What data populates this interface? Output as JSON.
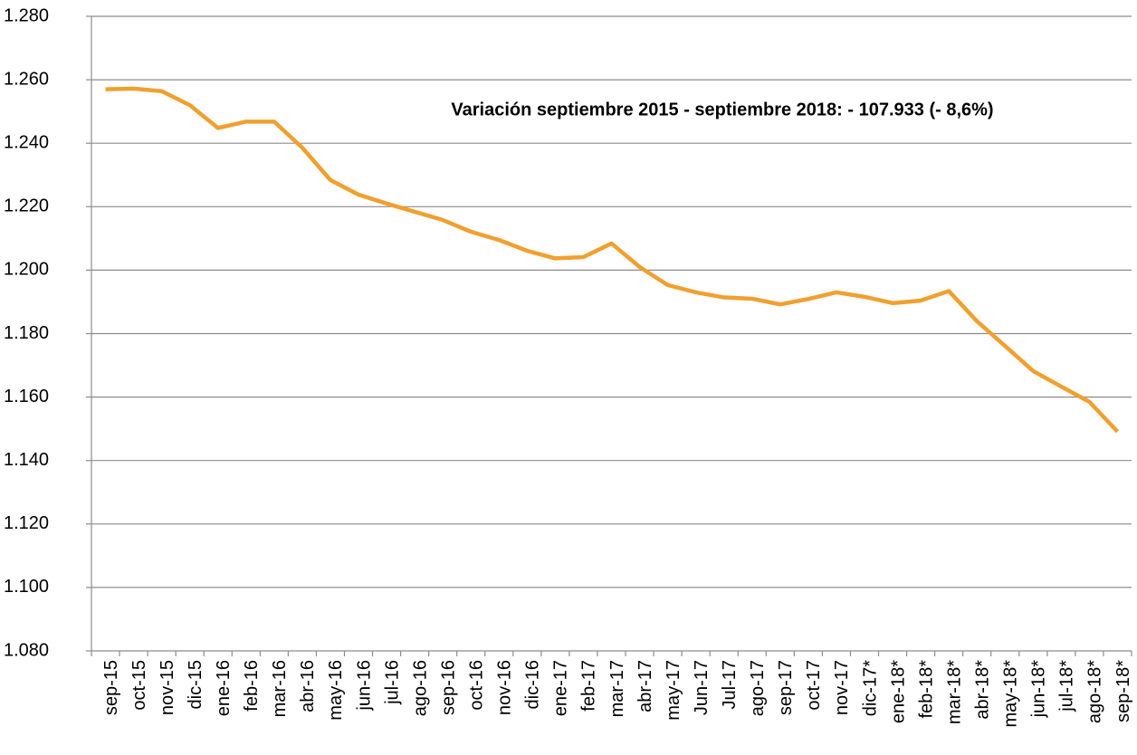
{
  "chart_data": {
    "type": "line",
    "annotation": "Variación septiembre 2015 - septiembre 2018: - 107.933 (- 8,6%)",
    "categories": [
      "sep-15",
      "oct-15",
      "nov-15",
      "dic-15",
      "ene-16",
      "feb-16",
      "mar-16",
      "abr-16",
      "may-16",
      "jun-16",
      "jul-16",
      "ago-16",
      "sep-16",
      "oct-16",
      "nov-16",
      "dic-16",
      "ene-17",
      "feb-17",
      "mar-17",
      "abr-17",
      "may-17",
      "Jun-17",
      "Jul-17",
      "ago-17",
      "sep-17",
      "oct-17",
      "nov-17",
      "dic-17*",
      "ene-18*",
      "feb-18*",
      "mar-18*",
      "abr-18*",
      "may-18*",
      "jun-18*",
      "jul-18*",
      "ago-18*",
      "sep-18*"
    ],
    "values": [
      1257,
      1257.2,
      1256.4,
      1252,
      1244.8,
      1246.8,
      1246.8,
      1238.6,
      1228.4,
      1223.8,
      1221,
      1218.4,
      1215.8,
      1212.1,
      1209.5,
      1206.1,
      1203.7,
      1204.1,
      1208.4,
      1201,
      1195.3,
      1193,
      1191.4,
      1191,
      1189.2,
      1190.9,
      1193,
      1191.6,
      1189.6,
      1190.4,
      1193.4,
      1183.9,
      1176.1,
      1168.2,
      1163.3,
      1158.5,
      1149.1
    ],
    "color": "#f0a030",
    "ylim": [
      1080,
      1280
    ],
    "yticks": [
      {
        "value": 1080,
        "label": "1.080"
      },
      {
        "value": 1100,
        "label": "1.100"
      },
      {
        "value": 1120,
        "label": "1.120"
      },
      {
        "value": 1140,
        "label": "1.140"
      },
      {
        "value": 1160,
        "label": "1.160"
      },
      {
        "value": 1180,
        "label": "1.180"
      },
      {
        "value": 1200,
        "label": "1.200"
      },
      {
        "value": 1220,
        "label": "1.220"
      },
      {
        "value": 1240,
        "label": "1.240"
      },
      {
        "value": 1260,
        "label": "1.260"
      },
      {
        "value": 1280,
        "label": "1.280"
      }
    ],
    "grid": true
  }
}
